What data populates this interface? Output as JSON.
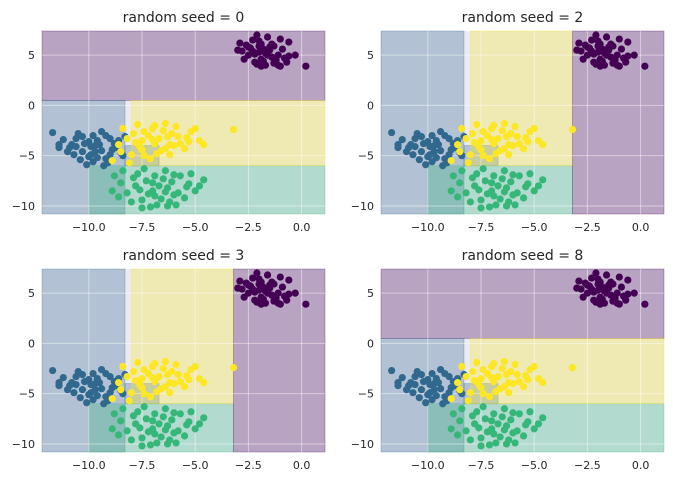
{
  "chart_data": [
    {
      "type": "scatter",
      "title": "random seed = 0",
      "xlim": [
        -12.2,
        1.1
      ],
      "ylim": [
        -10.8,
        7.4
      ],
      "xticks": [
        -10.0,
        -7.5,
        -5.0,
        -2.5,
        0.0
      ],
      "xtick_labels": [
        "−10.0",
        "−7.5",
        "−5.0",
        "−2.5",
        "0.0"
      ],
      "yticks": [
        5,
        0,
        -5,
        -10
      ],
      "ytick_labels": [
        "5",
        "0",
        "−5",
        "−10"
      ],
      "grid": true,
      "regions": [
        {
          "class": 0,
          "color": "#440154",
          "x": [
            -12.2,
            1.1
          ],
          "y": [
            0.5,
            7.4
          ]
        },
        {
          "class": 1,
          "color": "#31688e",
          "x": [
            -12.2,
            -8.3
          ],
          "y": [
            -10.8,
            0.5
          ]
        },
        {
          "class": 1,
          "color": "#31688e",
          "x": [
            -8.3,
            -6.7
          ],
          "y": [
            -6.0,
            -4.0
          ]
        },
        {
          "class": 2,
          "color": "#35b779",
          "x": [
            -10.0,
            1.1
          ],
          "y": [
            -10.8,
            -6.0
          ]
        },
        {
          "class": 3,
          "color": "#fde725",
          "x": [
            -8.0,
            1.1
          ],
          "y": [
            -6.0,
            0.5
          ]
        }
      ]
    },
    {
      "type": "scatter",
      "title": "random seed = 2",
      "xlim": [
        -12.2,
        1.1
      ],
      "ylim": [
        -10.8,
        7.4
      ],
      "xticks": [
        -10.0,
        -7.5,
        -5.0,
        -2.5,
        0.0
      ],
      "xtick_labels": [
        "−10.0",
        "−7.5",
        "−5.0",
        "−2.5",
        "0.0"
      ],
      "yticks": [
        5,
        0,
        -5,
        -10
      ],
      "ytick_labels": [
        "5",
        "0",
        "−5",
        "−10"
      ],
      "grid": true,
      "regions": [
        {
          "class": 1,
          "color": "#31688e",
          "x": [
            -12.2,
            -8.3
          ],
          "y": [
            -10.8,
            7.4
          ]
        },
        {
          "class": 1,
          "color": "#31688e",
          "x": [
            -8.3,
            -6.7
          ],
          "y": [
            -6.0,
            -4.0
          ]
        },
        {
          "class": 2,
          "color": "#35b779",
          "x": [
            -10.0,
            -3.2
          ],
          "y": [
            -10.8,
            -6.0
          ]
        },
        {
          "class": 3,
          "color": "#fde725",
          "x": [
            -8.0,
            -3.2
          ],
          "y": [
            -6.0,
            7.4
          ]
        },
        {
          "class": 0,
          "color": "#440154",
          "x": [
            -3.2,
            1.1
          ],
          "y": [
            -10.8,
            7.4
          ]
        }
      ]
    },
    {
      "type": "scatter",
      "title": "random seed = 3",
      "xlim": [
        -12.2,
        1.1
      ],
      "ylim": [
        -10.8,
        7.4
      ],
      "xticks": [
        -10.0,
        -7.5,
        -5.0,
        -2.5,
        0.0
      ],
      "xtick_labels": [
        "−10.0",
        "−7.5",
        "−5.0",
        "−2.5",
        "0.0"
      ],
      "yticks": [
        5,
        0,
        -5,
        -10
      ],
      "ytick_labels": [
        "5",
        "0",
        "−5",
        "−10"
      ],
      "grid": true,
      "regions": [
        {
          "class": 1,
          "color": "#31688e",
          "x": [
            -12.2,
            -8.3
          ],
          "y": [
            -10.8,
            7.4
          ]
        },
        {
          "class": 1,
          "color": "#31688e",
          "x": [
            -8.3,
            -6.7
          ],
          "y": [
            -6.0,
            -4.0
          ]
        },
        {
          "class": 2,
          "color": "#35b779",
          "x": [
            -10.0,
            -3.2
          ],
          "y": [
            -10.8,
            -6.0
          ]
        },
        {
          "class": 3,
          "color": "#fde725",
          "x": [
            -8.0,
            -3.2
          ],
          "y": [
            -6.0,
            7.4
          ]
        },
        {
          "class": 0,
          "color": "#440154",
          "x": [
            -3.2,
            1.1
          ],
          "y": [
            -10.8,
            7.4
          ]
        }
      ]
    },
    {
      "type": "scatter",
      "title": "random seed = 8",
      "xlim": [
        -12.2,
        1.1
      ],
      "ylim": [
        -10.8,
        7.4
      ],
      "xticks": [
        -10.0,
        -7.5,
        -5.0,
        -2.5,
        0.0
      ],
      "xtick_labels": [
        "−10.0",
        "−7.5",
        "−5.0",
        "−2.5",
        "0.0"
      ],
      "yticks": [
        5,
        0,
        -5,
        -10
      ],
      "ytick_labels": [
        "5",
        "0",
        "−5",
        "−10"
      ],
      "grid": true,
      "regions": [
        {
          "class": 0,
          "color": "#440154",
          "x": [
            -12.2,
            1.1
          ],
          "y": [
            0.5,
            7.4
          ]
        },
        {
          "class": 1,
          "color": "#31688e",
          "x": [
            -12.2,
            -8.3
          ],
          "y": [
            -10.8,
            0.5
          ]
        },
        {
          "class": 1,
          "color": "#31688e",
          "x": [
            -8.3,
            -6.7
          ],
          "y": [
            -6.0,
            -4.0
          ]
        },
        {
          "class": 2,
          "color": "#35b779",
          "x": [
            -10.0,
            1.1
          ],
          "y": [
            -10.8,
            -6.0
          ]
        },
        {
          "class": 3,
          "color": "#fde725",
          "x": [
            -8.0,
            1.1
          ],
          "y": [
            -6.0,
            0.5
          ]
        }
      ]
    }
  ],
  "points": {
    "class_colors": [
      "#440154",
      "#31688e",
      "#35b779",
      "#fde725"
    ],
    "series": [
      {
        "class": 0,
        "points": [
          [
            -2.0,
            5.9
          ],
          [
            -1.5,
            5.8
          ],
          [
            -1.7,
            5.2
          ],
          [
            -2.3,
            6.5
          ],
          [
            -1.9,
            4.6
          ],
          [
            -2.5,
            5.0
          ],
          [
            -1.3,
            4.2
          ],
          [
            -0.9,
            5.6
          ],
          [
            -2.8,
            5.4
          ],
          [
            -1.1,
            5.0
          ],
          [
            -2.2,
            4.3
          ],
          [
            -1.6,
            6.8
          ],
          [
            -2.0,
            5.3
          ],
          [
            -1.4,
            4.8
          ],
          [
            -0.6,
            4.9
          ],
          [
            -1.0,
            3.9
          ],
          [
            -2.6,
            6.0
          ],
          [
            -1.8,
            5.6
          ],
          [
            -0.6,
            6.3
          ],
          [
            -2.4,
            5.7
          ],
          [
            -1.2,
            4.5
          ],
          [
            -2.1,
            4.1
          ],
          [
            -1.9,
            6.1
          ],
          [
            -1.6,
            5.0
          ],
          [
            -2.7,
            4.6
          ],
          [
            -1.3,
            5.9
          ],
          [
            -1.0,
            6.6
          ],
          [
            -3.0,
            5.5
          ],
          [
            -2.1,
            7.0
          ],
          [
            -1.5,
            5.5
          ],
          [
            -0.7,
            4.3
          ],
          [
            -2.2,
            5.1
          ],
          [
            -1.8,
            4.4
          ],
          [
            -2.9,
            6.2
          ],
          [
            -0.3,
            5.0
          ],
          [
            -1.9,
            3.9
          ],
          [
            -1.1,
            4.0
          ],
          [
            -2.3,
            5.4
          ],
          [
            -1.7,
            4.0
          ],
          [
            -2.0,
            6.4
          ],
          [
            0.2,
            3.9
          ],
          [
            -1.4,
            6.1
          ],
          [
            -0.8,
            4.7
          ],
          [
            -2.5,
            5.8
          ]
        ]
      },
      {
        "class": 1,
        "points": [
          [
            -9.7,
            -4.0
          ],
          [
            -10.6,
            -3.3
          ],
          [
            -9.2,
            -3.0
          ],
          [
            -10.3,
            -4.6
          ],
          [
            -9.6,
            -5.2
          ],
          [
            -8.8,
            -3.8
          ],
          [
            -10.8,
            -3.9
          ],
          [
            -9.4,
            -4.5
          ],
          [
            -9.0,
            -4.9
          ],
          [
            -10.0,
            -3.6
          ],
          [
            -11.2,
            -3.4
          ],
          [
            -10.4,
            -5.4
          ],
          [
            -9.1,
            -5.7
          ],
          [
            -8.7,
            -4.2
          ],
          [
            -9.8,
            -3.0
          ],
          [
            -10.9,
            -4.2
          ],
          [
            -9.5,
            -3.9
          ],
          [
            -9.9,
            -4.9
          ],
          [
            -8.6,
            -3.5
          ],
          [
            -10.5,
            -2.8
          ],
          [
            -9.3,
            -6.0
          ],
          [
            -11.7,
            -2.7
          ],
          [
            -9.7,
            -4.6
          ],
          [
            -10.2,
            -3.8
          ],
          [
            -8.4,
            -5.0
          ],
          [
            -10.1,
            -5.9
          ],
          [
            -11.4,
            -3.9
          ],
          [
            -9.0,
            -3.3
          ],
          [
            -10.7,
            -4.9
          ],
          [
            -9.6,
            -3.5
          ],
          [
            -8.9,
            -4.4
          ],
          [
            -10.3,
            -3.1
          ],
          [
            -9.2,
            -5.3
          ],
          [
            -11.0,
            -4.6
          ],
          [
            -9.9,
            -4.1
          ],
          [
            -8.5,
            -4.7
          ],
          [
            -10.6,
            -4.1
          ],
          [
            -9.4,
            -2.6
          ],
          [
            -10.0,
            -5.1
          ],
          [
            -8.3,
            -3.1
          ],
          [
            -11.4,
            -4.2
          ],
          [
            -9.8,
            -5.6
          ]
        ]
      },
      {
        "class": 2,
        "points": [
          [
            -7.0,
            -8.5
          ],
          [
            -6.3,
            -8.2
          ],
          [
            -7.3,
            -7.5
          ],
          [
            -6.6,
            -9.3
          ],
          [
            -5.8,
            -8.7
          ],
          [
            -7.8,
            -8.0
          ],
          [
            -6.9,
            -7.0
          ],
          [
            -8.2,
            -8.7
          ],
          [
            -6.1,
            -7.6
          ],
          [
            -5.3,
            -7.8
          ],
          [
            -7.5,
            -9.4
          ],
          [
            -6.4,
            -6.5
          ],
          [
            -8.5,
            -7.7
          ],
          [
            -5.5,
            -9.2
          ],
          [
            -7.2,
            -8.8
          ],
          [
            -6.8,
            -9.9
          ],
          [
            -4.8,
            -8.0
          ],
          [
            -7.7,
            -6.8
          ],
          [
            -6.0,
            -8.9
          ],
          [
            -8.0,
            -9.6
          ],
          [
            -6.5,
            -7.3
          ],
          [
            -5.2,
            -6.8
          ],
          [
            -7.9,
            -7.2
          ],
          [
            -6.2,
            -9.6
          ],
          [
            -8.6,
            -9.1
          ],
          [
            -5.7,
            -7.0
          ],
          [
            -7.1,
            -10.1
          ],
          [
            -6.7,
            -8.0
          ],
          [
            -4.6,
            -7.4
          ],
          [
            -8.4,
            -6.5
          ],
          [
            -6.0,
            -6.9
          ],
          [
            -7.4,
            -6.3
          ],
          [
            -5.0,
            -8.5
          ],
          [
            -6.3,
            -10.0
          ],
          [
            -7.6,
            -8.4
          ],
          [
            -5.9,
            -9.9
          ],
          [
            -8.8,
            -7.0
          ],
          [
            -6.9,
            -9.0
          ],
          [
            -5.4,
            -8.1
          ],
          [
            -7.0,
            -7.7
          ],
          [
            -7.5,
            -10.2
          ],
          [
            -6.4,
            -8.6
          ],
          [
            -8.9,
            -8.5
          ]
        ]
      },
      {
        "class": 3,
        "points": [
          [
            -7.0,
            -3.4
          ],
          [
            -6.2,
            -3.9
          ],
          [
            -7.4,
            -2.6
          ],
          [
            -6.6,
            -4.5
          ],
          [
            -5.8,
            -3.1
          ],
          [
            -7.8,
            -3.7
          ],
          [
            -6.9,
            -2.0
          ],
          [
            -8.0,
            -4.9
          ],
          [
            -6.1,
            -2.8
          ],
          [
            -5.3,
            -3.6
          ],
          [
            -7.5,
            -4.4
          ],
          [
            -6.4,
            -1.8
          ],
          [
            -8.4,
            -2.3
          ],
          [
            -5.5,
            -4.3
          ],
          [
            -7.2,
            -3.0
          ],
          [
            -6.8,
            -4.8
          ],
          [
            -4.8,
            -3.5
          ],
          [
            -7.7,
            -1.9
          ],
          [
            -6.0,
            -4.0
          ],
          [
            -8.2,
            -3.3
          ],
          [
            -6.5,
            -2.5
          ],
          [
            -5.2,
            -2.6
          ],
          [
            -7.9,
            -2.8
          ],
          [
            -6.2,
            -4.9
          ],
          [
            -8.6,
            -3.9
          ],
          [
            -5.7,
            -3.8
          ],
          [
            -7.1,
            -5.3
          ],
          [
            -6.7,
            -3.3
          ],
          [
            -4.6,
            -3.9
          ],
          [
            -8.5,
            -4.6
          ],
          [
            -3.2,
            -2.4
          ],
          [
            -5.0,
            -2.3
          ],
          [
            -7.4,
            -5.0
          ],
          [
            -6.3,
            -3.1
          ],
          [
            -7.6,
            -4.1
          ],
          [
            -5.9,
            -2.1
          ],
          [
            -8.9,
            -5.5
          ],
          [
            -6.9,
            -3.8
          ],
          [
            -5.4,
            -3.2
          ],
          [
            -7.0,
            -2.3
          ],
          [
            -7.5,
            -3.5
          ],
          [
            -6.4,
            -4.3
          ],
          [
            -8.1,
            -5.7
          ]
        ]
      }
    ]
  }
}
